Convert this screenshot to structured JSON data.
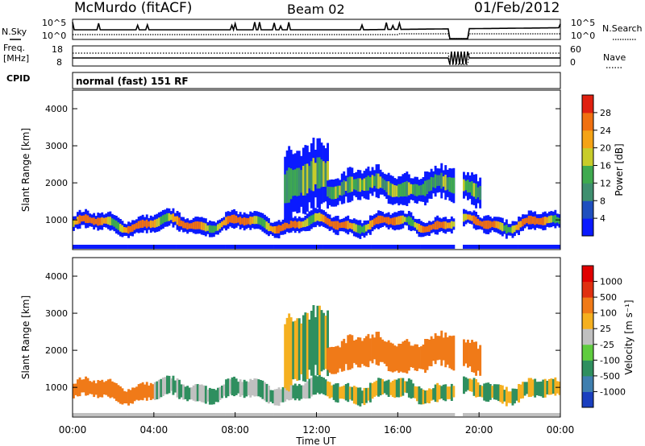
{
  "header": {
    "station": "McMurdo (fitACF)",
    "beam": "Beam 02",
    "date": "01/Feb/2012"
  },
  "status_panel": {
    "nsky_label": "N.Sky",
    "nsearch_label": "N.Search",
    "noise_tick_top": "10^5",
    "noise_tick_bottom": "10^0",
    "freq_label": "Freq.",
    "freq_unit": "[MHz]",
    "freq_tick_top": "18",
    "freq_tick_bottom": "8",
    "nave_label": "Nave",
    "nave_tick_top": "60",
    "nave_tick_bottom": "0",
    "cpid_label": "CPID",
    "cpid_value": "normal (fast) 151 RF"
  },
  "chart_data": [
    {
      "type": "heatmap",
      "name": "power",
      "ylabel": "Slant Range [km]",
      "yticks": [
        "1000",
        "2000",
        "3000",
        "4000"
      ],
      "ylim": [
        200,
        4500
      ],
      "xlim": [
        0,
        24
      ],
      "colorbar": {
        "label": "Power [dB]",
        "ticks": [
          "4",
          "8",
          "12",
          "16",
          "20",
          "24",
          "28"
        ],
        "colors": [
          "#0a1aff",
          "#1f4fbf",
          "#3f8f6f",
          "#3faa4f",
          "#c8cc2a",
          "#f5a315",
          "#f07010",
          "#e02010"
        ]
      },
      "echo_bands": [
        {
          "x0": 0.0,
          "x1": 24.0,
          "center": 900,
          "half": 220,
          "value": "high"
        },
        {
          "x0": 10.3,
          "x1": 12.6,
          "center": 1800,
          "half": 900,
          "value": "mid"
        },
        {
          "x0": 12.5,
          "x1": 20.0,
          "center": 1900,
          "half": 400,
          "value": "mid"
        }
      ]
    },
    {
      "type": "heatmap",
      "name": "velocity",
      "ylabel": "Slant Range [km]",
      "yticks": [
        "1000",
        "2000",
        "3000",
        "4000"
      ],
      "ylim": [
        200,
        4500
      ],
      "xlim": [
        0,
        24
      ],
      "xticks": [
        "00:00",
        "04:00",
        "08:00",
        "12:00",
        "16:00",
        "20:00",
        "00:00"
      ],
      "xlabel": "Time UT",
      "colorbar": {
        "label": "Velocity [m s⁻¹]",
        "ticks": [
          "1000",
          "500",
          "100",
          "25",
          "-25",
          "-100",
          "-500",
          "-1000"
        ],
        "colors": [
          "#1a3fbf",
          "#3f7faf",
          "#2f8f5f",
          "#5fcc3f",
          "#c0c0c0",
          "#f5b020",
          "#f07a18",
          "#e03010",
          "#e00000"
        ]
      }
    }
  ]
}
